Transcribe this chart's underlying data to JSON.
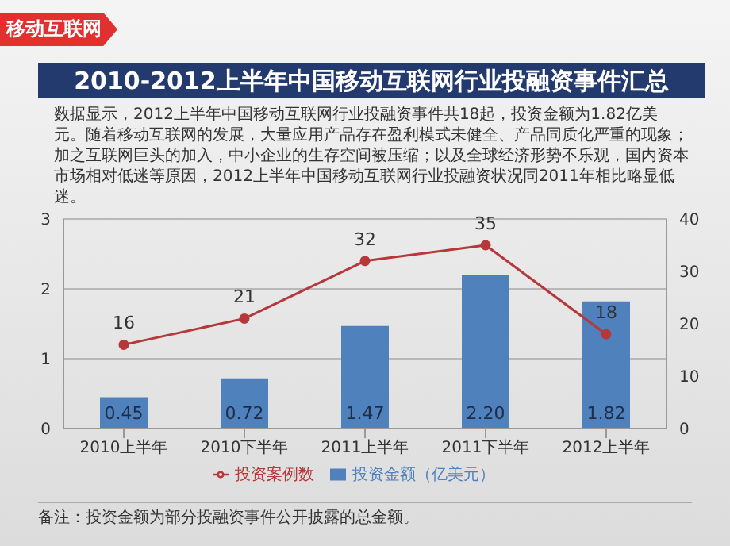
{
  "chart_data": {
    "type": "bar",
    "title": "2010-2012上半年中国移动互联网行业投融资事件汇总",
    "subtitle": "数据显示，2012上半年中国移动互联网行业投融资事件共18起，投资金额为1.82亿美元。随着移动互联网的发展，大量应用产品存在盈利模式未健全、产品同质化严重的现象；加之互联网巨头的加入，中小企业的生存空间被压缩；以及全球经济形势不乐观，国内资本市场相对低迷等原因，2012上半年中国移动互联网行业投融资状况同2011年相比略显低迷。",
    "annotations": [
      "移动互联网",
      "备注：投资金额为部分投融资事件公开披露的总金额。"
    ],
    "categories": [
      "2010上半年",
      "2010下半年",
      "2011上半年",
      "2011下半年",
      "2012上半年"
    ],
    "series": [
      {
        "name": "投资金额（亿美元）",
        "color": "#4f81bd",
        "values": [
          0.45,
          0.72,
          1.47,
          2.2,
          1.82
        ],
        "value_labels": [
          "0.45",
          "0.72",
          "1.47",
          "2.20",
          "1.82"
        ]
      },
      {
        "name": "投资案例数",
        "type": "line",
        "axis": "y2",
        "color": "#b5383a",
        "values": [
          16,
          21,
          32,
          35,
          18
        ]
      }
    ],
    "ylim": [
      0,
      3
    ],
    "yticks": [
      0,
      1,
      2,
      3
    ],
    "y2lim": [
      0,
      40
    ],
    "y2ticks": [
      0,
      10,
      20,
      30,
      40
    ],
    "grid": "y",
    "legend": "bottom",
    "marker": "circle",
    "data_labels": true
  }
}
